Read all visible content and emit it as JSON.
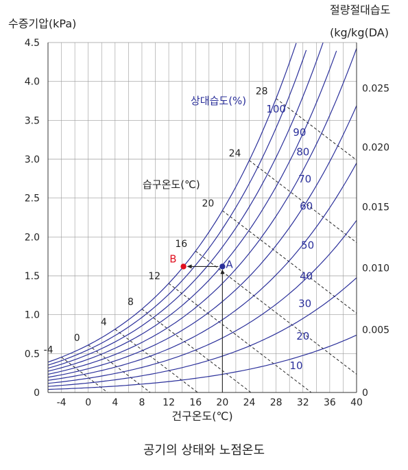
{
  "chart_data": {
    "type": "line",
    "title": "공기의 상태와 노점온도",
    "xlabel": "건구온도(℃)",
    "ylabel_left": "수증기압(kPa)",
    "ylabel_right_line1": "절량절대습도",
    "ylabel_right_line2": "(kg/kg(DA)",
    "xlim": [
      -6,
      40
    ],
    "ylim": [
      0,
      4.5
    ],
    "x_ticks": [
      "-4",
      "0",
      "4",
      "8",
      "12",
      "16",
      "20",
      "24",
      "28",
      "32",
      "36",
      "40"
    ],
    "y_ticks_left": [
      "0",
      "0.5",
      "1.0",
      "1.5",
      "2.0",
      "2.5",
      "3.0",
      "3.5",
      "4.0",
      "4.5"
    ],
    "y_ticks_right": [
      "0",
      "0.005",
      "0.010",
      "0.015",
      "0.020",
      "0.025"
    ],
    "relative_humidity_label": "상대습도(%)",
    "wet_bulb_label": "습구온도(℃)",
    "grid": true,
    "series": [
      {
        "name": "100",
        "values": [
          [
            -6,
            0.39
          ],
          [
            -4,
            0.44
          ],
          [
            0,
            0.61
          ],
          [
            4,
            0.81
          ],
          [
            8,
            1.07
          ],
          [
            12,
            1.4
          ],
          [
            16,
            1.82
          ],
          [
            20,
            2.34
          ],
          [
            24,
            2.98
          ],
          [
            28,
            3.78
          ],
          [
            31,
            4.5
          ]
        ]
      },
      {
        "name": "90",
        "values": [
          [
            -6,
            0.35
          ],
          [
            0,
            0.55
          ],
          [
            8,
            0.96
          ],
          [
            16,
            1.64
          ],
          [
            24,
            2.68
          ],
          [
            32,
            4.28
          ]
        ]
      },
      {
        "name": "80",
        "values": [
          [
            -6,
            0.31
          ],
          [
            0,
            0.49
          ],
          [
            8,
            0.86
          ],
          [
            16,
            1.45
          ],
          [
            24,
            2.39
          ],
          [
            32,
            3.81
          ]
        ]
      },
      {
        "name": "70",
        "values": [
          [
            -6,
            0.27
          ],
          [
            0,
            0.43
          ],
          [
            8,
            0.75
          ],
          [
            16,
            1.27
          ],
          [
            24,
            2.09
          ],
          [
            32,
            3.33
          ],
          [
            38,
            4.65
          ]
        ]
      },
      {
        "name": "60",
        "values": [
          [
            -6,
            0.23
          ],
          [
            0,
            0.37
          ],
          [
            8,
            0.64
          ],
          [
            16,
            1.09
          ],
          [
            24,
            1.79
          ],
          [
            32,
            2.85
          ],
          [
            40,
            4.42
          ]
        ]
      },
      {
        "name": "50",
        "values": [
          [
            -6,
            0.2
          ],
          [
            0,
            0.31
          ],
          [
            8,
            0.54
          ],
          [
            16,
            0.91
          ],
          [
            24,
            1.49
          ],
          [
            32,
            2.38
          ],
          [
            40,
            3.69
          ]
        ]
      },
      {
        "name": "40",
        "values": [
          [
            -6,
            0.16
          ],
          [
            0,
            0.24
          ],
          [
            8,
            0.43
          ],
          [
            16,
            0.73
          ],
          [
            24,
            1.19
          ],
          [
            32,
            1.9
          ],
          [
            40,
            2.95
          ]
        ]
      },
      {
        "name": "30",
        "values": [
          [
            -6,
            0.12
          ],
          [
            0,
            0.18
          ],
          [
            8,
            0.32
          ],
          [
            16,
            0.55
          ],
          [
            24,
            0.89
          ],
          [
            32,
            1.43
          ],
          [
            40,
            2.21
          ]
        ]
      },
      {
        "name": "20",
        "values": [
          [
            -6,
            0.08
          ],
          [
            0,
            0.12
          ],
          [
            8,
            0.21
          ],
          [
            16,
            0.36
          ],
          [
            24,
            0.6
          ],
          [
            32,
            0.95
          ],
          [
            40,
            1.47
          ]
        ]
      },
      {
        "name": "10",
        "values": [
          [
            -6,
            0.04
          ],
          [
            0,
            0.06
          ],
          [
            8,
            0.11
          ],
          [
            16,
            0.18
          ],
          [
            24,
            0.3
          ],
          [
            32,
            0.48
          ],
          [
            40,
            0.74
          ]
        ]
      }
    ],
    "rh_labels": [
      {
        "text": "100",
        "x": 28.0,
        "y": 3.6
      },
      {
        "text": "90",
        "x": 31.5,
        "y": 3.3
      },
      {
        "text": "80",
        "x": 32.0,
        "y": 3.05
      },
      {
        "text": "70",
        "x": 32.3,
        "y": 2.7
      },
      {
        "text": "60",
        "x": 32.5,
        "y": 2.35
      },
      {
        "text": "50",
        "x": 32.7,
        "y": 1.85
      },
      {
        "text": "40",
        "x": 32.5,
        "y": 1.45
      },
      {
        "text": "30",
        "x": 32.3,
        "y": 1.1
      },
      {
        "text": "20",
        "x": 32.0,
        "y": 0.68
      },
      {
        "text": "10",
        "x": 31.0,
        "y": 0.3
      }
    ],
    "wet_bulb_values": [
      "-4",
      "0",
      "4",
      "8",
      "12",
      "16",
      "20",
      "24",
      "28"
    ],
    "points": [
      {
        "name": "A",
        "x": 20,
        "y": 1.62,
        "color": "#2a2f9a"
      },
      {
        "name": "B",
        "x": 14.2,
        "y": 1.62,
        "color": "#e01020"
      }
    ],
    "colors": {
      "rh_line": "#2a2f9a",
      "grid": "#9a9a9a",
      "wet_bulb": "#222222",
      "point_B": "#e01020"
    }
  }
}
